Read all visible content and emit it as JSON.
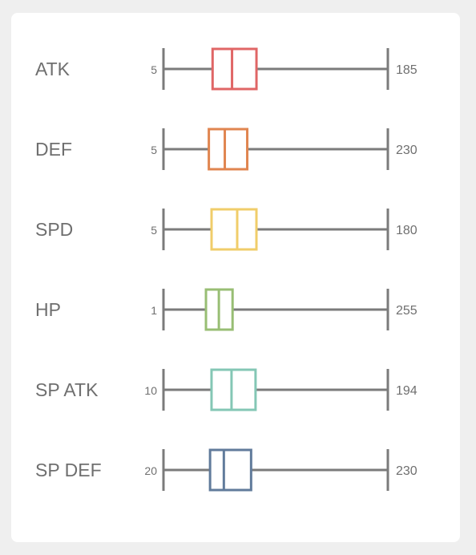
{
  "chart_data": {
    "type": "boxplot",
    "scale_note": "each row normalized between its own min and max",
    "rows": [
      {
        "label": "ATK",
        "min": 5,
        "max": 185,
        "q1": 44.4,
        "median": 60.0,
        "q3": 79.6,
        "color": "#e06666"
      },
      {
        "label": "DEF",
        "min": 5,
        "max": 230,
        "q1": 50.5,
        "median": 66.5,
        "q3": 89.0,
        "color": "#e08550"
      },
      {
        "label": "SPD",
        "min": 5,
        "max": 180,
        "q1": 42.5,
        "median": 62.5,
        "q3": 77.5,
        "color": "#f0cd6a"
      },
      {
        "label": "HP",
        "min": 1,
        "max": 255,
        "q1": 49.1,
        "median": 63.7,
        "q3": 79.2,
        "color": "#98be74"
      },
      {
        "label": "SP ATK",
        "min": 10,
        "max": 194,
        "q1": 49.4,
        "median": 65.8,
        "q3": 85.5,
        "color": "#84c7b5"
      },
      {
        "label": "SP DEF",
        "min": 20,
        "max": 230,
        "q1": 63.6,
        "median": 76.5,
        "q3": 102.0,
        "color": "#617b9b"
      }
    ]
  }
}
